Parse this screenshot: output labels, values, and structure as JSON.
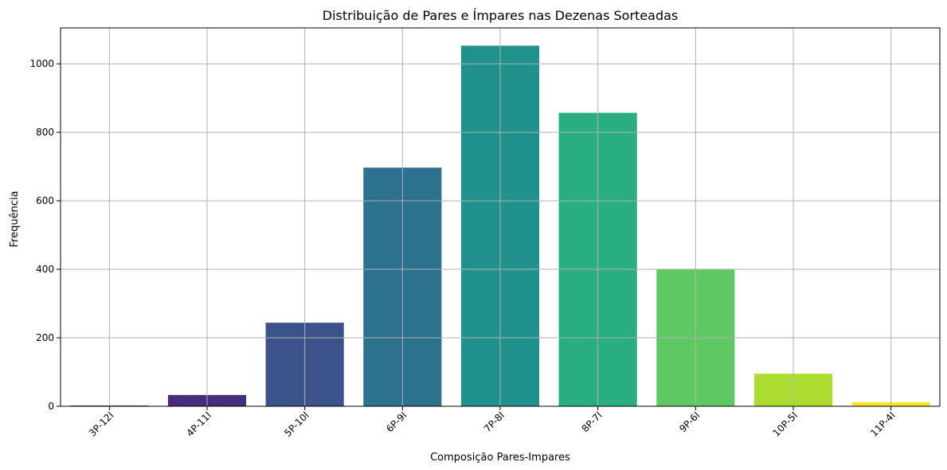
{
  "chart_data": {
    "type": "bar",
    "title": "Distribuição de Pares e Ímpares nas Dezenas Sorteadas",
    "xlabel": "Composição Pares-Impares",
    "ylabel": "Frequência",
    "categories": [
      "3P-12I",
      "4P-11I",
      "5P-10I",
      "6P-9I",
      "7P-8I",
      "8P-7I",
      "9P-6I",
      "10P-5I",
      "11P-4I"
    ],
    "values": [
      2,
      33,
      244,
      697,
      1053,
      857,
      401,
      95,
      12
    ],
    "colors": [
      "#440154",
      "#472d7b",
      "#3b528b",
      "#2c728e",
      "#21918c",
      "#28ae80",
      "#5ec962",
      "#addc30",
      "#fde725"
    ],
    "yticks": [
      0,
      200,
      400,
      600,
      800,
      1000
    ],
    "ylim": [
      0,
      1105
    ],
    "grid": true,
    "legend": false
  }
}
